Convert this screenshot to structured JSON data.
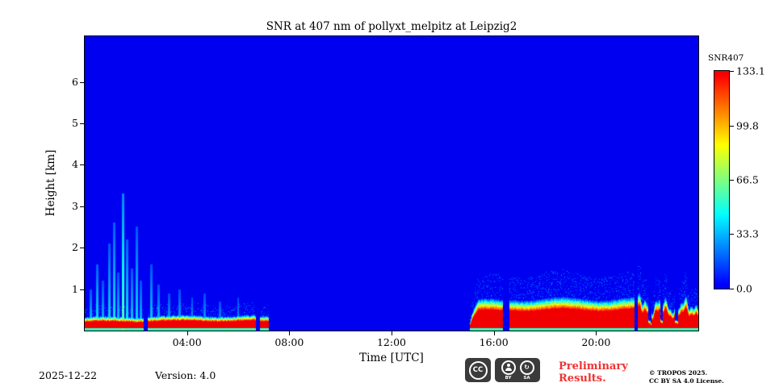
{
  "title": "SNR at 407 nm of pollyxt_melpitz at Leipzig2",
  "axes": {
    "x_label": "Time [UTC]",
    "y_label": "Height [km]",
    "x_ticks": [
      "04:00",
      "08:00",
      "12:00",
      "16:00",
      "20:00"
    ],
    "x_tick_hours": [
      4,
      8,
      12,
      16,
      20
    ],
    "y_ticks": [
      "1",
      "2",
      "3",
      "4",
      "5",
      "6"
    ],
    "y_tick_km": [
      1,
      2,
      3,
      4,
      5,
      6
    ],
    "x_range_hours": [
      0,
      24
    ],
    "y_range_km": [
      0,
      7.1
    ]
  },
  "colorbar": {
    "label": "SNR407",
    "tick_labels": [
      "133.1",
      "99.8",
      "66.5",
      "33.3",
      "0.0"
    ],
    "tick_values": [
      133.1,
      99.8,
      66.5,
      33.3,
      0.0
    ],
    "vmin": 0,
    "vmax": 133.1
  },
  "footer": {
    "date": "2025-12-22",
    "version": "Version: 4.0",
    "preliminary_line1": "Preliminary",
    "preliminary_line2": "Results.",
    "preliminary_color": "#f03232",
    "copyright_line1": "© TROPOS 2025.",
    "copyright_line2": "CC BY SA 4.0 License.",
    "license_badges": [
      "CC",
      "BY",
      "SA"
    ]
  },
  "chart_data": {
    "type": "heatmap",
    "title": "SNR at 407 nm of pollyxt_melpitz at Leipzig2",
    "xlabel": "Time [UTC]",
    "ylabel": "Height [km]",
    "x_range": [
      0,
      24
    ],
    "y_range": [
      0,
      7.1
    ],
    "vmin": 0,
    "vmax": 133.1,
    "colormap": "jet",
    "colorbar_label": "SNR407",
    "background_value": 0,
    "surface_value": 55,
    "layers": [
      {
        "t0": 0.0,
        "t1": 2.3,
        "top_km": 0.28
      },
      {
        "t0": 2.45,
        "t1": 6.7,
        "top_km": 0.3
      },
      {
        "t0": 6.85,
        "t1": 7.2,
        "top_km": 0.28
      },
      {
        "t0": 15.05,
        "t1": 16.35,
        "top_km": 0.62,
        "ramp_in_h": 0.35
      },
      {
        "t0": 16.6,
        "t1": 21.5,
        "top_km": 0.65
      },
      {
        "t0": 21.62,
        "t1": 24.0,
        "top_km": 0.55,
        "jagged": 0.22
      }
    ],
    "notches": [
      {
        "t": 22.1,
        "w": 0.07
      },
      {
        "t": 22.55,
        "w": 0.05
      },
      {
        "t": 23.15,
        "w": 0.05
      }
    ],
    "spikes": [
      {
        "t": 0.25,
        "top": 1.0,
        "v": 40
      },
      {
        "t": 0.5,
        "top": 1.6,
        "v": 45
      },
      {
        "t": 0.7,
        "top": 1.2,
        "v": 38
      },
      {
        "t": 0.95,
        "top": 2.1,
        "v": 42
      },
      {
        "t": 1.15,
        "top": 2.6,
        "v": 45
      },
      {
        "t": 1.3,
        "top": 1.4,
        "v": 40
      },
      {
        "t": 1.5,
        "top": 3.3,
        "v": 62
      },
      {
        "t": 1.65,
        "top": 2.2,
        "v": 45
      },
      {
        "t": 1.85,
        "top": 1.5,
        "v": 40
      },
      {
        "t": 2.05,
        "top": 2.5,
        "v": 42
      },
      {
        "t": 2.2,
        "top": 1.2,
        "v": 38
      },
      {
        "t": 2.6,
        "top": 1.6,
        "v": 40
      },
      {
        "t": 2.9,
        "top": 1.1,
        "v": 38
      },
      {
        "t": 3.3,
        "top": 0.9,
        "v": 36
      },
      {
        "t": 3.7,
        "top": 1.0,
        "v": 36
      },
      {
        "t": 4.2,
        "top": 0.8,
        "v": 35
      },
      {
        "t": 4.7,
        "top": 0.9,
        "v": 35
      },
      {
        "t": 5.3,
        "top": 0.7,
        "v": 34
      },
      {
        "t": 6.0,
        "top": 0.8,
        "v": 34
      }
    ]
  }
}
